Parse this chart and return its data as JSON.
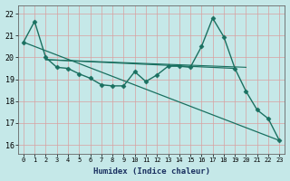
{
  "xlabel": "Humidex (Indice chaleur)",
  "background_color": "#c5e8e8",
  "grid_color": "#d8a0a0",
  "line_color": "#1a7060",
  "xlim": [
    -0.5,
    23.5
  ],
  "ylim": [
    15.6,
    22.4
  ],
  "yticks": [
    16,
    17,
    18,
    19,
    20,
    21,
    22
  ],
  "xticks": [
    0,
    1,
    2,
    3,
    4,
    5,
    6,
    7,
    8,
    9,
    10,
    11,
    12,
    13,
    14,
    15,
    16,
    17,
    18,
    19,
    20,
    21,
    22,
    23
  ],
  "series": [
    {
      "name": "main_with_markers",
      "x": [
        0,
        1,
        2,
        3,
        4,
        5,
        6,
        7,
        8,
        9,
        10,
        11,
        12,
        13,
        14,
        15,
        16,
        17,
        18,
        19,
        20,
        21,
        22,
        23
      ],
      "y": [
        20.7,
        21.65,
        20.0,
        19.55,
        19.5,
        19.25,
        19.05,
        18.75,
        18.7,
        18.7,
        19.35,
        18.9,
        19.2,
        19.6,
        19.6,
        19.55,
        20.5,
        21.8,
        20.95,
        19.5,
        18.45,
        17.6,
        17.2,
        16.2
      ],
      "marker": "D",
      "markersize": 2.5,
      "linewidth": 1.0
    },
    {
      "name": "smooth_nearly_flat",
      "x": [
        2,
        19
      ],
      "y": [
        19.9,
        19.5
      ],
      "marker": null,
      "linewidth": 0.9
    },
    {
      "name": "long_diagonal",
      "x": [
        0,
        23
      ],
      "y": [
        20.7,
        16.2
      ],
      "marker": null,
      "linewidth": 0.9
    },
    {
      "name": "mid_flat",
      "x": [
        2,
        20
      ],
      "y": [
        19.9,
        19.55
      ],
      "marker": null,
      "linewidth": 0.8
    }
  ]
}
